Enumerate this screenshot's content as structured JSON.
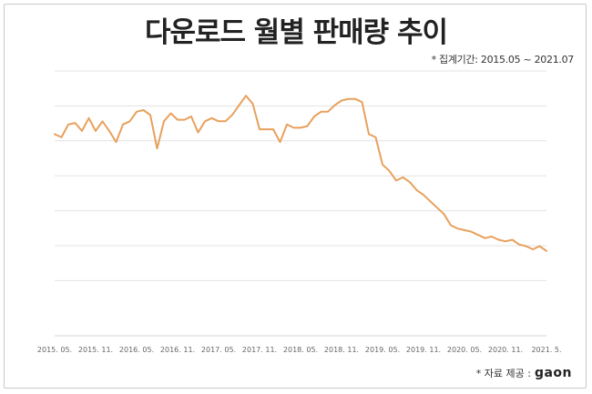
{
  "chart_data": {
    "type": "line",
    "title": "다운로드 월별 판매량 추이",
    "subtitle": "* 집계기간: 2015.05 ~ 2021.07",
    "source_label": "* 자료 제공 :",
    "source_logo": "gaon",
    "x_tick_labels": [
      "2015. 05.",
      "2015. 11.",
      "2016. 05.",
      "2016. 11.",
      "2017. 05.",
      "2017. 11.",
      "2018. 05.",
      "2018. 11.",
      "2019. 05.",
      "2019. 11.",
      "2020. 05.",
      "2020. 11.",
      "2021. 5."
    ],
    "x_tick_months": [
      0,
      6,
      12,
      18,
      24,
      30,
      36,
      42,
      48,
      54,
      60,
      66,
      72
    ],
    "y_gridlines": 7,
    "y_axis_labels": "none",
    "line_color": "#e8a05c",
    "series": [
      {
        "values": [
          63,
          62,
          66,
          66.5,
          64,
          68,
          64,
          67,
          64,
          60.5,
          66,
          67,
          70,
          70.5,
          69,
          58.5,
          67,
          69.5,
          67.5,
          67.5,
          68.5,
          63.5,
          67,
          68,
          67,
          67,
          69,
          72,
          75,
          72.5,
          64.5,
          64.5,
          64.5,
          60.5,
          66,
          65,
          65,
          65.5,
          68.5,
          70,
          70,
          72,
          73.5,
          74,
          74,
          73,
          63,
          62,
          53.5,
          51.5,
          48.5,
          49.5,
          48,
          45.5,
          44,
          42,
          40,
          38,
          34.5,
          33.5,
          33,
          32.5,
          31.5,
          30.5,
          31,
          30,
          29.5,
          30,
          28.5,
          28,
          27,
          28,
          26.5
        ]
      }
    ]
  }
}
